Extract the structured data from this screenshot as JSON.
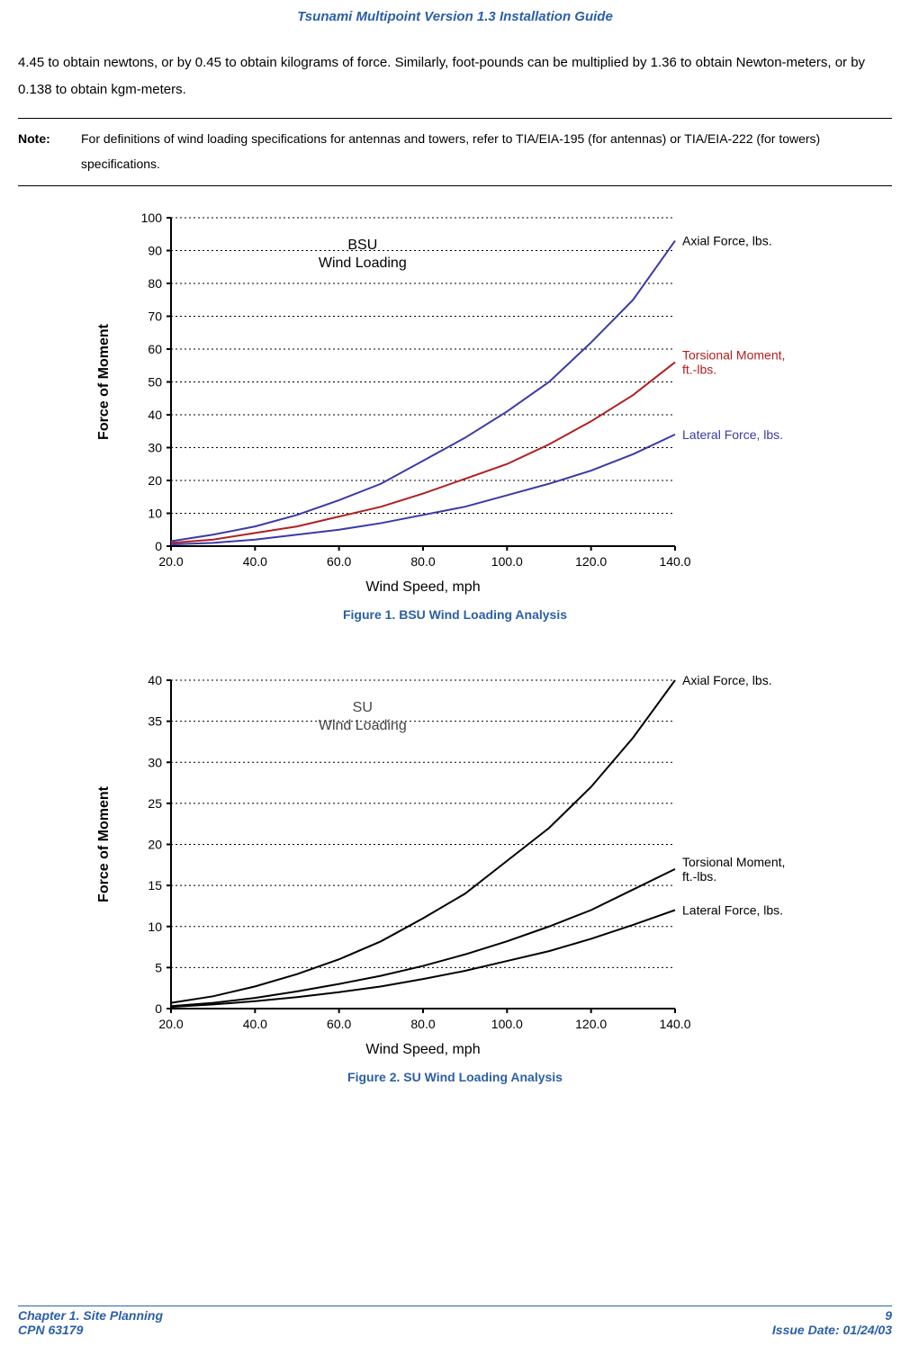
{
  "header": {
    "title": "Tsunami Multipoint Version 1.3 Installation Guide"
  },
  "body": {
    "paragraph": "4.45 to obtain newtons, or by 0.45 to obtain kilograms of force.  Similarly, foot-pounds can be multiplied by 1.36 to obtain Newton-meters, or by 0.138 to obtain kgm-meters."
  },
  "note": {
    "label": "Note:",
    "text": "For definitions of wind loading specifications for antennas and towers, refer to TIA/EIA-195 (for antennas) or TIA/EIA-222 (for towers) specifications."
  },
  "chart1": {
    "type": "line",
    "title_line1": "BSU",
    "title_line2": "Wind Loading",
    "title_fontsize": 16,
    "title_color": "#000000",
    "xlabel": "Wind Speed, mph",
    "ylabel": "Force of Moment",
    "label_fontsize": 16,
    "label_color": "#000000",
    "xlim": [
      20,
      140
    ],
    "ylim": [
      0,
      100
    ],
    "xtick_step": 20,
    "ytick_step": 10,
    "xticks": [
      "20.0",
      "40.0",
      "60.0",
      "80.0",
      "100.0",
      "120.0",
      "140.0"
    ],
    "yticks": [
      "0",
      "10",
      "20",
      "30",
      "40",
      "50",
      "60",
      "70",
      "80",
      "90",
      "100"
    ],
    "tick_fontsize": 14,
    "grid_color": "#000000",
    "grid_dash": "2,3",
    "background_color": "#ffffff",
    "axis_color": "#000000",
    "line_width": 2,
    "series": [
      {
        "name": "Axial Force, lbs.",
        "color": "#3a3aa8",
        "label_color": "#000000",
        "data": [
          [
            20,
            1.5
          ],
          [
            30,
            3.5
          ],
          [
            40,
            6
          ],
          [
            50,
            9.5
          ],
          [
            60,
            14
          ],
          [
            70,
            19
          ],
          [
            80,
            26
          ],
          [
            90,
            33
          ],
          [
            100,
            41
          ],
          [
            110,
            50
          ],
          [
            120,
            62
          ],
          [
            130,
            75
          ],
          [
            140,
            93
          ]
        ]
      },
      {
        "name": "Torsional Moment, ft.-lbs.",
        "color": "#b02020",
        "label_color": "#b02020",
        "label_lines": [
          "Torsional Moment,",
          "ft.-lbs."
        ],
        "data": [
          [
            20,
            1
          ],
          [
            30,
            2
          ],
          [
            40,
            4
          ],
          [
            50,
            6
          ],
          [
            60,
            9
          ],
          [
            70,
            12
          ],
          [
            80,
            16
          ],
          [
            90,
            20.5
          ],
          [
            100,
            25
          ],
          [
            110,
            31
          ],
          [
            120,
            38
          ],
          [
            130,
            46
          ],
          [
            140,
            56
          ]
        ]
      },
      {
        "name": "Lateral Force, lbs.",
        "color": "#3a3aa8",
        "label_color": "#3a3aa8",
        "data": [
          [
            20,
            0.5
          ],
          [
            30,
            1
          ],
          [
            40,
            2
          ],
          [
            50,
            3.5
          ],
          [
            60,
            5
          ],
          [
            70,
            7
          ],
          [
            80,
            9.5
          ],
          [
            90,
            12
          ],
          [
            100,
            15.5
          ],
          [
            110,
            19
          ],
          [
            120,
            23
          ],
          [
            130,
            28
          ],
          [
            140,
            34
          ]
        ]
      }
    ],
    "figure_caption": "Figure 1.  BSU Wind Loading Analysis"
  },
  "chart2": {
    "type": "line",
    "title_line1": "SU",
    "title_line2": "Wind Loading",
    "title_fontsize": 16,
    "title_color": "#444444",
    "xlabel": "Wind Speed, mph",
    "ylabel": "Force of Moment",
    "label_fontsize": 16,
    "label_color": "#000000",
    "xlim": [
      20,
      140
    ],
    "ylim": [
      0,
      40
    ],
    "xtick_step": 20,
    "ytick_step": 5,
    "xticks": [
      "20.0",
      "40.0",
      "60.0",
      "80.0",
      "100.0",
      "120.0",
      "140.0"
    ],
    "yticks": [
      "0",
      "5",
      "10",
      "15",
      "20",
      "25",
      "30",
      "35",
      "40"
    ],
    "tick_fontsize": 14,
    "grid_color": "#000000",
    "grid_dash": "2,3",
    "background_color": "#ffffff",
    "axis_color": "#000000",
    "line_width": 2,
    "series": [
      {
        "name": "Axial Force, lbs.",
        "color": "#000000",
        "label_color": "#000000",
        "data": [
          [
            20,
            0.7
          ],
          [
            30,
            1.5
          ],
          [
            40,
            2.7
          ],
          [
            50,
            4.2
          ],
          [
            60,
            6
          ],
          [
            70,
            8.2
          ],
          [
            80,
            11
          ],
          [
            90,
            14
          ],
          [
            100,
            18
          ],
          [
            110,
            22
          ],
          [
            120,
            27
          ],
          [
            130,
            33
          ],
          [
            140,
            40
          ]
        ]
      },
      {
        "name": "Torsional Moment, ft.-lbs.",
        "color": "#000000",
        "label_color": "#000000",
        "label_lines": [
          "Torsional Moment,",
          "ft.-lbs."
        ],
        "data": [
          [
            20,
            0.3
          ],
          [
            30,
            0.7
          ],
          [
            40,
            1.3
          ],
          [
            50,
            2.1
          ],
          [
            60,
            3
          ],
          [
            70,
            4
          ],
          [
            80,
            5.2
          ],
          [
            90,
            6.6
          ],
          [
            100,
            8.2
          ],
          [
            110,
            10
          ],
          [
            120,
            12
          ],
          [
            130,
            14.5
          ],
          [
            140,
            17
          ]
        ]
      },
      {
        "name": "Lateral Force, lbs.",
        "color": "#000000",
        "label_color": "#000000",
        "data": [
          [
            20,
            0.2
          ],
          [
            30,
            0.5
          ],
          [
            40,
            0.9
          ],
          [
            50,
            1.4
          ],
          [
            60,
            2
          ],
          [
            70,
            2.7
          ],
          [
            80,
            3.6
          ],
          [
            90,
            4.6
          ],
          [
            100,
            5.8
          ],
          [
            110,
            7
          ],
          [
            120,
            8.5
          ],
          [
            130,
            10.2
          ],
          [
            140,
            12
          ]
        ]
      }
    ],
    "figure_caption": "Figure 2.  SU Wind Loading Analysis"
  },
  "footer": {
    "chapter": "Chapter 1.  Site Planning",
    "cpn": "CPN 63179",
    "page": "9",
    "issue": "Issue Date:  01/24/03"
  }
}
